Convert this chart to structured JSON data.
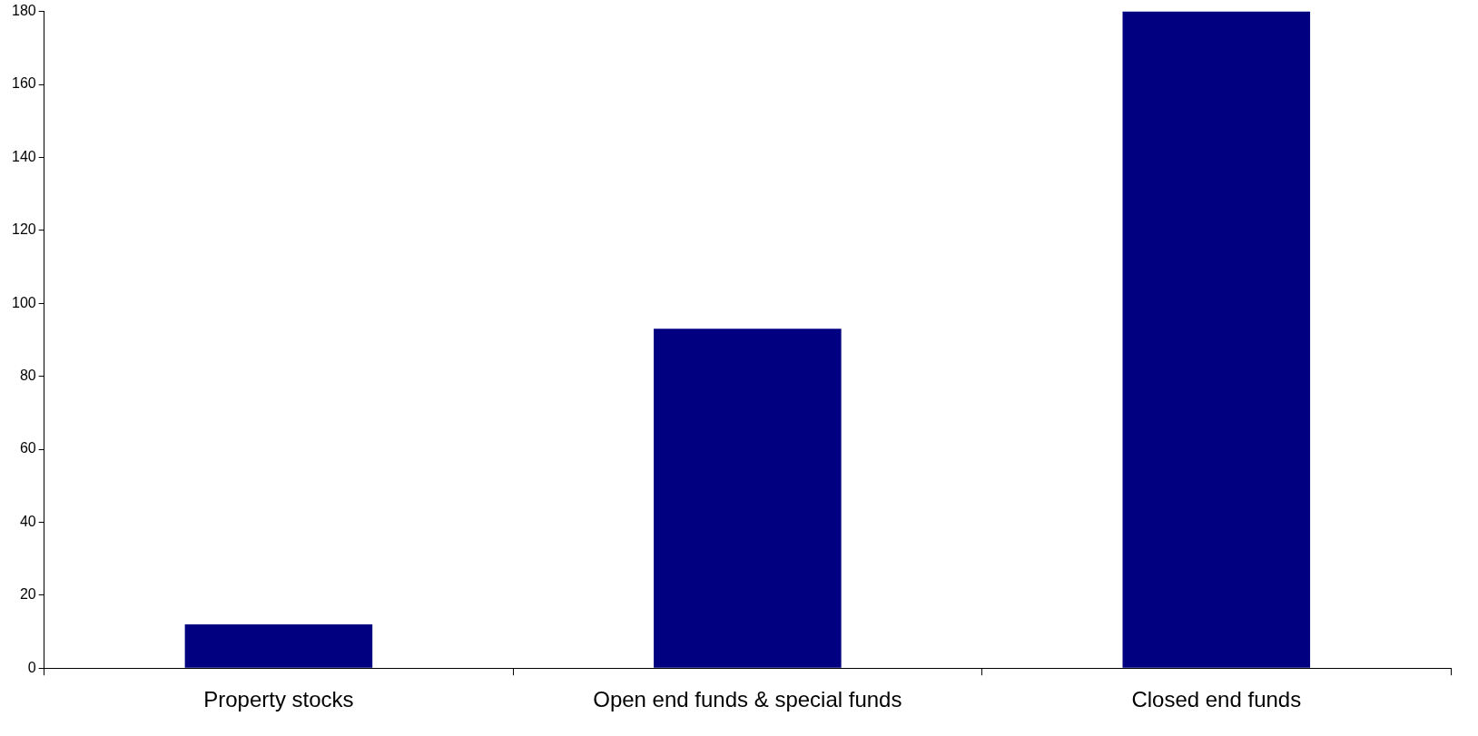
{
  "chart_data": {
    "type": "bar",
    "categories": [
      "Property stocks",
      "Open end funds & special funds",
      "Closed end funds"
    ],
    "values": [
      12,
      93,
      180
    ],
    "color": "#000080",
    "ylim": [
      0,
      180
    ],
    "yticks": [
      0,
      20,
      40,
      60,
      80,
      100,
      120,
      140,
      160,
      180
    ],
    "grid": false
  }
}
